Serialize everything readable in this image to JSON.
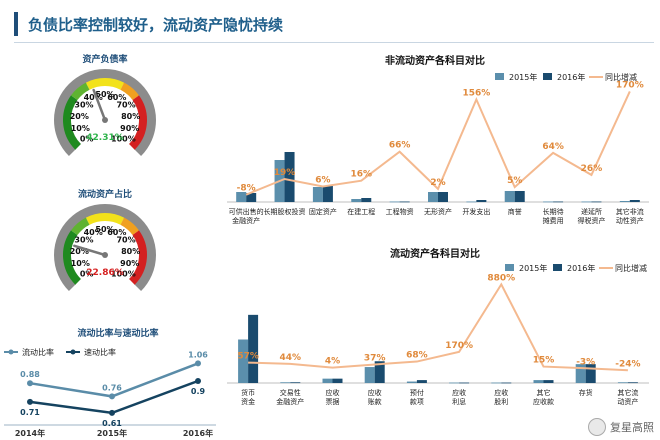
{
  "page": {
    "title": "负债比率控制较好，流动资产隐忧持续"
  },
  "gauges": [
    {
      "title": "资产负债率",
      "value": 42.31,
      "value_label": "42.31%",
      "value_color": "#2db34a",
      "ticks": [
        "0%",
        "10%",
        "20%",
        "30%",
        "40%",
        "50%",
        "60%",
        "70%",
        "80%",
        "90%",
        "100%"
      ]
    },
    {
      "title": "流动资产占比",
      "value": 22.86,
      "value_label": "22.86%",
      "value_color": "#d62020",
      "ticks": [
        "0%",
        "10%",
        "20%",
        "30%",
        "40%",
        "50%",
        "60%",
        "70%",
        "80%",
        "90%",
        "100%"
      ]
    }
  ],
  "chart_data": [
    {
      "type": "bar",
      "title": "非流动资产各科目对比",
      "categories": [
        "可供出售的\n金融资产",
        "长期股权投资",
        "固定资产",
        "在建工程",
        "工程物资",
        "无形资产",
        "开发支出",
        "商誉",
        "长期待\n摊费用",
        "递延所\n得税资产",
        "其它非流\n动性资产"
      ],
      "series": [
        {
          "name": "2015年",
          "kind": "bar",
          "color": "#5b8fac",
          "values": [
            10,
            42,
            15,
            3,
            0.5,
            10,
            0.5,
            11,
            0.5,
            0.5,
            1
          ]
        },
        {
          "name": "2016年",
          "kind": "bar",
          "color": "#1a4b6e",
          "values": [
            9,
            50,
            16,
            4,
            0.5,
            10,
            2,
            11,
            0.5,
            0.5,
            2
          ]
        },
        {
          "name": "同比增减",
          "kind": "line",
          "color": "#f4b98f",
          "values": [
            -8,
            19,
            6,
            16,
            66,
            2,
            156,
            5,
            64,
            26,
            170
          ],
          "labels": [
            "-8%",
            "19%",
            "6%",
            "16%",
            "66%",
            "2%",
            "156%",
            "5%",
            "64%",
            "26%",
            "170%"
          ]
        }
      ]
    },
    {
      "type": "bar",
      "title": "流动资产各科目对比",
      "categories": [
        "货币\n资金",
        "交易性\n金融资产",
        "应收\n票据",
        "应收\n账款",
        "预付\n款项",
        "应收\n利息",
        "应收\n股利",
        "其它\n应收款",
        "存货",
        "其它流\n动资产"
      ],
      "series": [
        {
          "name": "2015年",
          "kind": "bar",
          "color": "#5b8fac",
          "values": [
            30,
            0.5,
            3,
            11,
            1,
            0.3,
            0.3,
            2,
            13,
            0.5
          ]
        },
        {
          "name": "2016年",
          "kind": "bar",
          "color": "#1a4b6e",
          "values": [
            47,
            0.5,
            3,
            15,
            2,
            0.3,
            0.3,
            2,
            13,
            0.5
          ]
        },
        {
          "name": "同比增减",
          "kind": "line",
          "color": "#f4b98f",
          "values": [
            57,
            44,
            4,
            37,
            68,
            170,
            880,
            15,
            -3,
            -24
          ],
          "labels": [
            "57%",
            "44%",
            "4%",
            "37%",
            "68%",
            "170%",
            "880%",
            "15%",
            "-3%",
            "-24%"
          ]
        }
      ]
    },
    {
      "type": "line",
      "title": "流动比率与速动比率",
      "categories": [
        "2014年",
        "2015年",
        "2016年"
      ],
      "series": [
        {
          "name": "流动比率",
          "color": "#5a8ca8",
          "values": [
            0.88,
            0.76,
            1.06
          ],
          "labels": [
            "0.88",
            "0.76",
            "1.06"
          ]
        },
        {
          "name": "速动比率",
          "color": "#154360",
          "values": [
            0.71,
            0.61,
            0.9
          ],
          "labels": [
            "0.71",
            "0.61",
            "0.9"
          ]
        }
      ]
    }
  ],
  "watermark": {
    "text": "复星高照"
  }
}
